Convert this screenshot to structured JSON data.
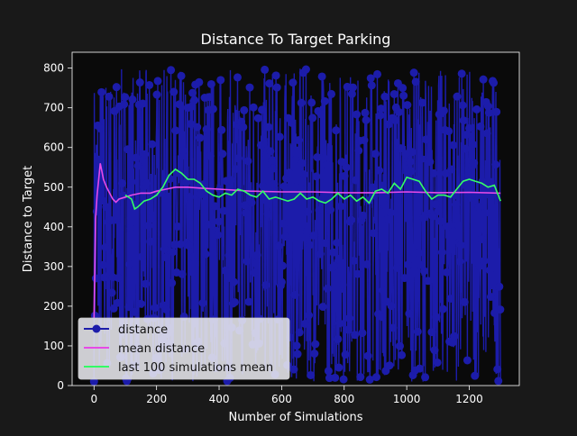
{
  "chart_data": {
    "type": "line",
    "title": "Distance To Target Parking",
    "xlabel": "Number of Simulations",
    "ylabel": "Distance to Target",
    "xlim": [
      -70,
      1360
    ],
    "ylim": [
      0,
      840
    ],
    "xticks": [
      0,
      200,
      400,
      600,
      800,
      1000,
      1200
    ],
    "yticks": [
      0,
      100,
      200,
      300,
      400,
      500,
      600,
      700,
      800
    ],
    "x_range": [
      0,
      1300
    ],
    "grid": false,
    "legend_position": "lower-left",
    "series": [
      {
        "name": "distance",
        "color": "#1c1caa",
        "marker": "circle",
        "note_values_estimated": "dense ~1300 points, values range ~10-800",
        "value_range": [
          10,
          800
        ]
      },
      {
        "name": "mean distance",
        "color": "#e64ae6",
        "x": [
          0,
          5,
          10,
          15,
          20,
          25,
          30,
          40,
          50,
          60,
          70,
          80,
          100,
          120,
          150,
          180,
          200,
          230,
          260,
          300,
          350,
          400,
          500,
          600,
          700,
          800,
          900,
          1000,
          1100,
          1200,
          1300
        ],
        "values": [
          170,
          420,
          480,
          520,
          560,
          540,
          520,
          500,
          485,
          470,
          462,
          470,
          475,
          480,
          485,
          485,
          490,
          495,
          500,
          500,
          497,
          495,
          490,
          488,
          488,
          486,
          486,
          488,
          486,
          487,
          485
        ]
      },
      {
        "name": "last 100 simulations mean",
        "color": "#33ff66",
        "x": [
          100,
          120,
          130,
          140,
          160,
          180,
          200,
          220,
          240,
          260,
          280,
          300,
          320,
          340,
          360,
          380,
          400,
          420,
          440,
          460,
          480,
          500,
          520,
          540,
          560,
          580,
          600,
          620,
          640,
          660,
          680,
          700,
          720,
          740,
          760,
          780,
          800,
          820,
          840,
          860,
          880,
          900,
          920,
          940,
          960,
          980,
          1000,
          1020,
          1040,
          1060,
          1080,
          1100,
          1120,
          1140,
          1160,
          1180,
          1200,
          1220,
          1240,
          1260,
          1280,
          1300
        ],
        "values": [
          480,
          470,
          445,
          450,
          465,
          470,
          480,
          500,
          530,
          545,
          535,
          520,
          520,
          510,
          490,
          480,
          475,
          485,
          480,
          495,
          490,
          480,
          475,
          490,
          470,
          475,
          470,
          465,
          470,
          485,
          470,
          475,
          465,
          460,
          470,
          485,
          470,
          480,
          465,
          475,
          460,
          490,
          495,
          485,
          510,
          495,
          525,
          520,
          515,
          490,
          470,
          480,
          480,
          475,
          495,
          515,
          520,
          515,
          510,
          500,
          505,
          465
        ]
      }
    ]
  }
}
